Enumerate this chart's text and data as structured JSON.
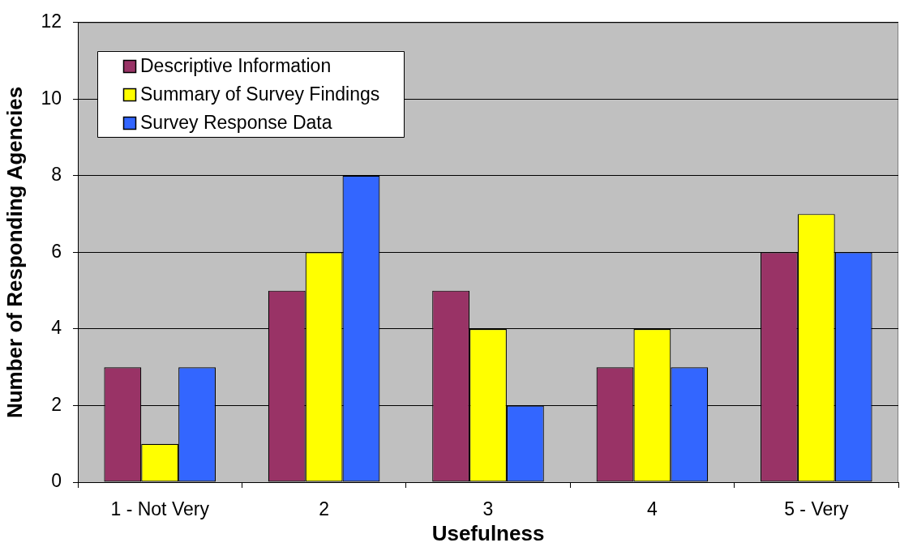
{
  "chart_data": {
    "type": "bar",
    "xlabel": "Usefulness",
    "ylabel": "Number of Responding Agencies",
    "categories": [
      "1 - Not Very",
      "2",
      "3",
      "4",
      "5 - Very"
    ],
    "series": [
      {
        "name": "Descriptive Information",
        "color": "#993366",
        "values": [
          3,
          5,
          5,
          3,
          6
        ]
      },
      {
        "name": "Summary of Survey Findings",
        "color": "#ffff00",
        "values": [
          1,
          6,
          4,
          4,
          7
        ]
      },
      {
        "name": "Survey Response Data",
        "color": "#3366ff",
        "values": [
          3,
          8,
          2,
          3,
          6
        ]
      }
    ],
    "ylim": [
      0,
      12
    ],
    "yticks": [
      0,
      2,
      4,
      6,
      8,
      10,
      12
    ],
    "grid": "y",
    "legend": "top left"
  }
}
